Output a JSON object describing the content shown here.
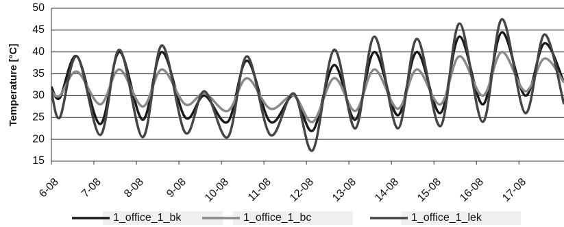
{
  "chart_data": {
    "type": "line",
    "y_label": "Temperature [°C]",
    "x": [
      6.0,
      6.2,
      6.6,
      7.15,
      7.6,
      8.15,
      8.6,
      9.15,
      9.6,
      10.15,
      10.6,
      11.15,
      11.7,
      12.15,
      12.65,
      13.15,
      13.6,
      14.15,
      14.6,
      15.15,
      15.6,
      16.15,
      16.6,
      17.15,
      17.6,
      18.06
    ],
    "series": [
      {
        "name": "1_office_1_bk",
        "color": "#1a1a1a",
        "values": [
          32,
          29.5,
          39,
          23.5,
          40,
          24.5,
          40,
          25,
          30,
          24,
          38,
          24,
          30,
          22,
          37,
          24.5,
          40,
          25.5,
          40,
          26,
          43.5,
          28,
          44.5,
          30,
          42,
          33
        ]
      },
      {
        "name": "1_office_1_bc",
        "color": "#8a8a8a",
        "values": [
          31,
          30,
          35.5,
          28,
          36,
          27.5,
          36,
          28,
          30.5,
          26.5,
          34,
          27,
          30,
          24,
          34,
          26.5,
          36,
          27,
          36,
          28,
          39,
          30,
          40,
          31,
          38.5,
          33
        ]
      },
      {
        "name": "1_office_1_lek",
        "color": "#454545",
        "values": [
          31,
          25,
          39,
          21,
          40.5,
          20.5,
          41.5,
          21.5,
          31,
          20.5,
          39,
          21,
          30.5,
          17.5,
          40.5,
          22.5,
          43.5,
          22.5,
          43,
          23,
          46.5,
          24,
          47.5,
          26,
          44,
          28
        ]
      }
    ],
    "xlim": [
      6,
      18.06
    ],
    "xticks": [
      {
        "value": 6,
        "label": "6-08"
      },
      {
        "value": 7,
        "label": "7-08"
      },
      {
        "value": 8,
        "label": "8-08"
      },
      {
        "value": 9,
        "label": "9-08"
      },
      {
        "value": 10,
        "label": "10-08"
      },
      {
        "value": 11,
        "label": "11-08"
      },
      {
        "value": 12,
        "label": "12-08"
      },
      {
        "value": 13,
        "label": "13-08"
      },
      {
        "value": 14,
        "label": "14-08"
      },
      {
        "value": 15,
        "label": "15-08"
      },
      {
        "value": 16,
        "label": "16-08"
      },
      {
        "value": 17,
        "label": "17-08"
      }
    ],
    "ylim": [
      15,
      50
    ],
    "yticks": [
      15,
      20,
      25,
      30,
      35,
      40,
      45,
      50
    ],
    "grid": true,
    "legend": "bottom"
  }
}
